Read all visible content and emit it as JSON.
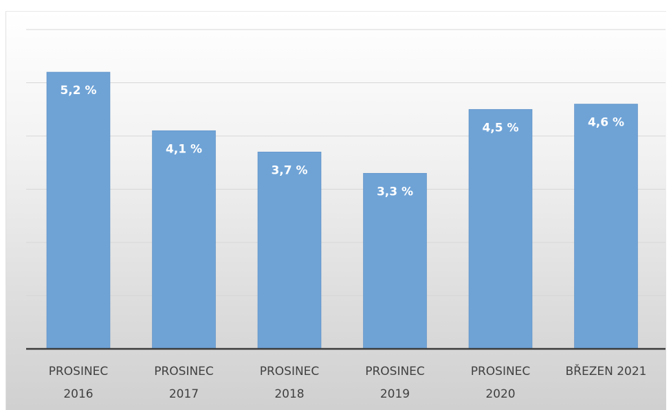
{
  "chart_data": {
    "type": "bar",
    "categories": [
      [
        "PROSINEC",
        "2016"
      ],
      [
        "PROSINEC",
        "2017"
      ],
      [
        "PROSINEC",
        "2018"
      ],
      [
        "PROSINEC",
        "2019"
      ],
      [
        "PROSINEC",
        "2020"
      ],
      [
        "BŘEZEN 2021"
      ]
    ],
    "values": [
      5.2,
      4.1,
      3.7,
      3.3,
      4.5,
      4.6
    ],
    "data_labels": [
      "5,2 %",
      "4,1 %",
      "3,7 %",
      "3,3 %",
      "4,5 %",
      "4,6 %"
    ],
    "title": "",
    "xlabel": "",
    "ylabel": "",
    "ylim": [
      0,
      6.5
    ],
    "grid": true,
    "gridlines": [
      1,
      2,
      3,
      4,
      5,
      6
    ],
    "bar_color": "#6fa3d6",
    "bar_edge_color": "#5b8ec4",
    "axis_color": "#3a3a3a"
  }
}
